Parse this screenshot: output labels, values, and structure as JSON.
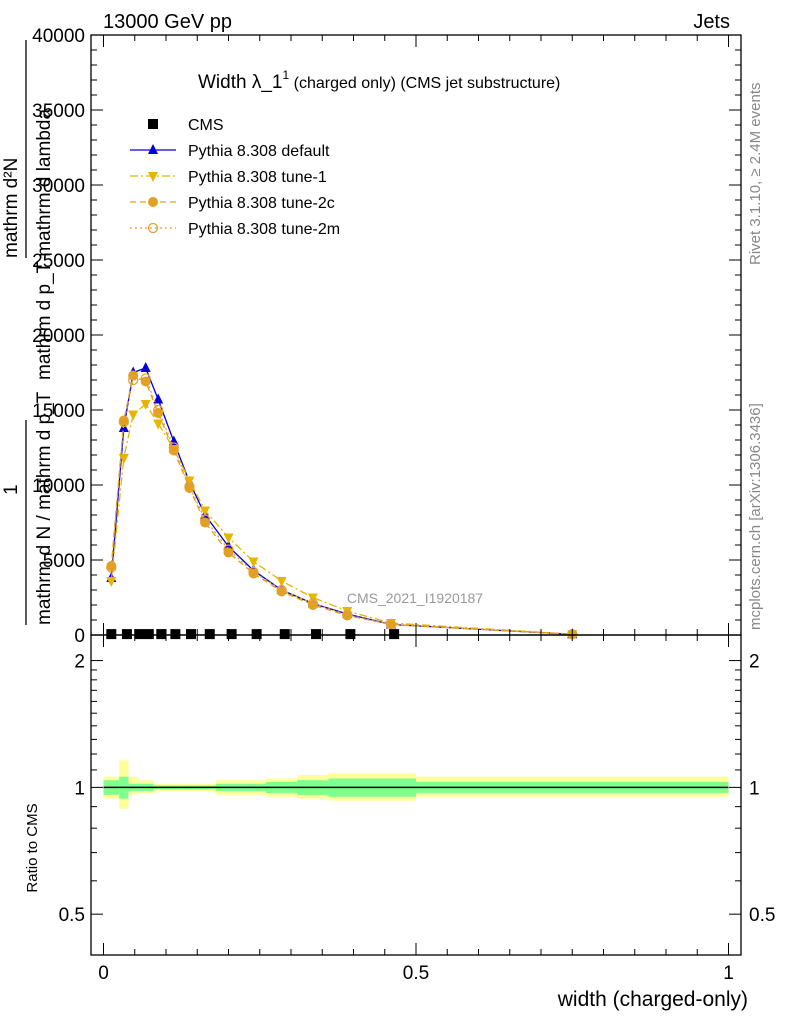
{
  "header": {
    "left": "13000 GeV pp",
    "right": "Jets"
  },
  "side_labels": {
    "rivet": "Rivet 3.1.10, ≥ 2.4M events",
    "mcplots": "mcplots.cern.ch [arXiv:1306.3436]"
  },
  "watermark": "CMS_2021_I1920187",
  "main_title": {
    "prefix": "Width λ_1",
    "superscript": "1",
    "suffix": " (charged only) (CMS jet substructure)"
  },
  "ylabel_main": {
    "line_num": "mathrm d²N",
    "line_den": "mathrm d p_T mathrm d lambda",
    "line_num2": "1",
    "line_den2": "mathrm d N / mathrm d p_T"
  },
  "xlabel": "width (charged-only)",
  "ylabel_ratio": "Ratio to CMS",
  "main_ticks": [
    "0",
    "5000",
    "10000",
    "15000",
    "20000",
    "25000",
    "30000",
    "35000",
    "40000"
  ],
  "ratio_ticks": [
    "0.5",
    "1",
    "2"
  ],
  "x_ticks": [
    "0",
    "0.5",
    "1"
  ],
  "colors": {
    "cms": "#000000",
    "default": "#0000dd",
    "tune1": "#e8b400",
    "tune2c": "#e0a020",
    "tune2m": "#e8a030",
    "band_inner": "#7fff8f",
    "band_outer": "#ffff99"
  },
  "chart_data": [
    {
      "type": "line",
      "panel": "main",
      "xlim": [
        -0.02,
        1.02
      ],
      "ylim": [
        0,
        40000
      ],
      "legend_position": "top-left",
      "series": [
        {
          "name": "CMS",
          "key": "cms",
          "marker": "square",
          "x": [
            0.0125,
            0.0375,
            0.0575,
            0.0725,
            0.0925,
            0.115,
            0.14,
            0.17,
            0.205,
            0.245,
            0.29,
            0.34,
            0.395,
            0.465
          ],
          "y": [
            60,
            60,
            60,
            60,
            60,
            60,
            60,
            60,
            60,
            60,
            60,
            60,
            60,
            60
          ]
        },
        {
          "name": "Pythia 8.308 default",
          "key": "default",
          "marker": "triangle-up",
          "line": "solid",
          "x": [
            0.0125,
            0.0325,
            0.0475,
            0.0675,
            0.0875,
            0.1125,
            0.1375,
            0.1625,
            0.2,
            0.24,
            0.285,
            0.335,
            0.39,
            0.46,
            0.75
          ],
          "y": [
            3800,
            13800,
            17500,
            17800,
            15700,
            12900,
            10200,
            8000,
            5900,
            4300,
            3000,
            2100,
            1400,
            700,
            50
          ]
        },
        {
          "name": "Pythia 8.308 tune-1",
          "key": "tune1",
          "marker": "triangle-down",
          "line": "dash-dot",
          "x": [
            0.0125,
            0.0325,
            0.0475,
            0.0675,
            0.0875,
            0.1125,
            0.1375,
            0.1625,
            0.2,
            0.24,
            0.285,
            0.335,
            0.39,
            0.46,
            0.75
          ],
          "y": [
            3600,
            11800,
            14700,
            15400,
            14100,
            12400,
            10300,
            8300,
            6500,
            4900,
            3600,
            2500,
            1600,
            800,
            60
          ]
        },
        {
          "name": "Pythia 8.308 tune-2c",
          "key": "tune2c",
          "marker": "circle",
          "line": "dash",
          "x": [
            0.0125,
            0.0325,
            0.0475,
            0.0675,
            0.0875,
            0.1125,
            0.1375,
            0.1625,
            0.2,
            0.24,
            0.285,
            0.335,
            0.39,
            0.46,
            0.75
          ],
          "y": [
            4600,
            14300,
            17300,
            16900,
            14800,
            12300,
            9800,
            7500,
            5500,
            4100,
            2900,
            2000,
            1300,
            700,
            50
          ]
        },
        {
          "name": "Pythia 8.308 tune-2m",
          "key": "tune2m",
          "marker": "circle-open",
          "line": "dot",
          "x": [
            0.0125,
            0.0325,
            0.0475,
            0.0675,
            0.0875,
            0.1125,
            0.1375,
            0.1625,
            0.2,
            0.24,
            0.285,
            0.335,
            0.39,
            0.46,
            0.75
          ],
          "y": [
            4500,
            14200,
            17000,
            17100,
            15000,
            12500,
            9900,
            7700,
            5700,
            4200,
            3000,
            2100,
            1350,
            700,
            50
          ]
        }
      ]
    },
    {
      "type": "area",
      "panel": "ratio",
      "ylim": [
        0.4,
        2.3
      ],
      "yscale": "log",
      "reference_line": 1,
      "bins": [
        0,
        0.025,
        0.04,
        0.055,
        0.08,
        0.1,
        0.125,
        0.15,
        0.18,
        0.22,
        0.26,
        0.31,
        0.36,
        0.42,
        0.5,
        1.0
      ],
      "band_inner_lo": [
        0.96,
        0.94,
        0.98,
        0.98,
        0.99,
        0.99,
        0.99,
        0.99,
        0.98,
        0.98,
        0.97,
        0.96,
        0.95,
        0.95,
        0.97
      ],
      "band_inner_hi": [
        1.04,
        1.06,
        1.02,
        1.02,
        1.01,
        1.01,
        1.01,
        1.01,
        1.02,
        1.02,
        1.03,
        1.04,
        1.05,
        1.05,
        1.03
      ],
      "band_outer_lo": [
        0.94,
        0.89,
        0.96,
        0.97,
        0.98,
        0.98,
        0.98,
        0.98,
        0.96,
        0.96,
        0.95,
        0.94,
        0.93,
        0.93,
        0.95
      ],
      "band_outer_hi": [
        1.06,
        1.16,
        1.06,
        1.04,
        1.02,
        1.02,
        1.02,
        1.02,
        1.04,
        1.04,
        1.05,
        1.07,
        1.08,
        1.08,
        1.06
      ]
    }
  ]
}
